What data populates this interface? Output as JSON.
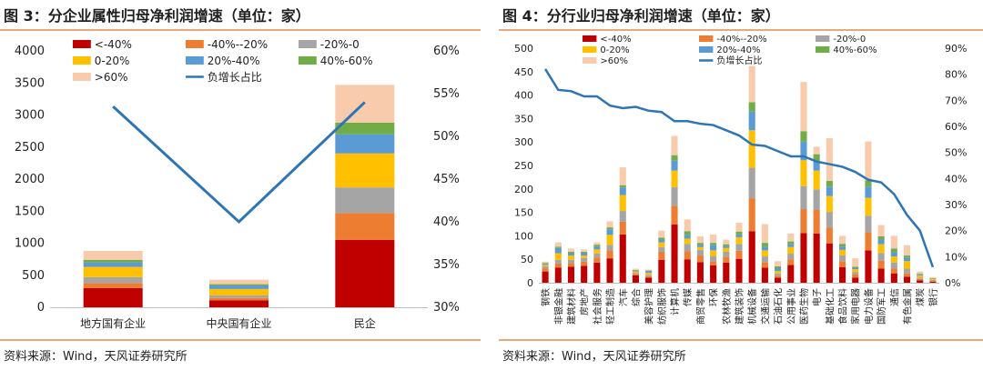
{
  "chart_data": [
    {
      "type": "bar",
      "title": "图 3：分企业属性归母净利润增速（单位：家）",
      "source": "资料来源：Wind，天风证券研究所",
      "categories": [
        "地方国有企业",
        "中央国有企业",
        "民企"
      ],
      "yticks": [
        "0",
        "500",
        "1000",
        "1500",
        "2000",
        "2500",
        "3000",
        "3500",
        "4000"
      ],
      "y2ticks": [
        "30%",
        "35%",
        "40%",
        "45%",
        "50%",
        "55%",
        "60%"
      ],
      "ylim": [
        0,
        4000
      ],
      "y2lim": [
        30,
        60
      ],
      "stacked": true,
      "series": [
        {
          "name": "<-40%",
          "color": "#c00000",
          "values": [
            300,
            110,
            1050
          ]
        },
        {
          "name": "-40%--20%",
          "color": "#ed7d31",
          "values": [
            80,
            35,
            420
          ]
        },
        {
          "name": "-20%-0",
          "color": "#a5a5a5",
          "values": [
            90,
            40,
            400
          ]
        },
        {
          "name": "0-20%",
          "color": "#ffc000",
          "values": [
            160,
            100,
            530
          ]
        },
        {
          "name": "20%-40%",
          "color": "#5b9bd5",
          "values": [
            70,
            55,
            300
          ]
        },
        {
          "name": "40%-60%",
          "color": "#70ad47",
          "values": [
            40,
            20,
            180
          ]
        },
        {
          "name": ">60%",
          "color": "#f8cbad",
          "values": [
            140,
            70,
            590
          ]
        }
      ],
      "line": {
        "name": "负增长占比",
        "color": "#2e75b6",
        "values": [
          53.5,
          40.0,
          54.0
        ]
      },
      "legend_position": "top-left"
    },
    {
      "type": "bar",
      "title": "图 4：分行业归母净利润增速（单位：家）",
      "source": "资料来源：Wind，天风证券研究所",
      "categories": [
        "钢铁",
        "非银金融",
        "建筑材料",
        "房地产",
        "社会服务",
        "轻工制造",
        "汽车",
        "综合",
        "美容护理",
        "纺织服饰",
        "计算机",
        "传媒",
        "商贸零售",
        "环保",
        "农林牧渔",
        "建筑装饰",
        "机械设备",
        "交通运输",
        "石油石化",
        "公用事业",
        "医药生物",
        "电子",
        "基础化工",
        "食品饮料",
        "家用电器",
        "电力设备",
        "国防军工",
        "通信",
        "有色金属",
        "煤炭",
        "银行"
      ],
      "yticks": [
        "0",
        "50",
        "100",
        "150",
        "200",
        "250",
        "300",
        "350",
        "400",
        "450",
        "500"
      ],
      "y2ticks": [
        "0%",
        "10%",
        "20%",
        "30%",
        "40%",
        "50%",
        "60%",
        "70%",
        "80%",
        "90%"
      ],
      "ylim": [
        0,
        500
      ],
      "y2lim": [
        0,
        90
      ],
      "stacked": true,
      "series": [
        {
          "name": "<-40%",
          "color": "#c00000",
          "values": [
            24,
            32,
            34,
            36,
            43,
            52,
            103,
            16,
            11,
            49,
            124,
            50,
            44,
            37,
            43,
            51,
            110,
            32,
            11,
            38,
            106,
            105,
            84,
            33,
            11,
            69,
            30,
            20,
            13,
            5,
            2
          ]
        },
        {
          "name": "-40%--20%",
          "color": "#ed7d31",
          "values": [
            6,
            9,
            8,
            9,
            11,
            17,
            27,
            3,
            3,
            17,
            40,
            17,
            14,
            9,
            12,
            17,
            70,
            12,
            4,
            12,
            51,
            50,
            34,
            13,
            7,
            39,
            17,
            10,
            7,
            3,
            2
          ]
        },
        {
          "name": "-20%-0",
          "color": "#a5a5a5",
          "values": [
            5,
            8,
            7,
            8,
            8,
            12,
            23,
            2,
            3,
            10,
            40,
            16,
            12,
            11,
            11,
            15,
            65,
            12,
            5,
            12,
            49,
            44,
            33,
            12,
            5,
            35,
            16,
            13,
            10,
            3,
            2
          ]
        },
        {
          "name": "0-20%",
          "color": "#ffc000",
          "values": [
            3,
            14,
            9,
            5,
            9,
            21,
            34,
            3,
            4,
            10,
            35,
            11,
            6,
            12,
            8,
            14,
            80,
            13,
            5,
            14,
            55,
            40,
            34,
            12,
            6,
            38,
            19,
            13,
            16,
            4,
            2
          ]
        },
        {
          "name": "20%-40%",
          "color": "#5b9bd5",
          "values": [
            2,
            11,
            5,
            6,
            6,
            12,
            16,
            2,
            4,
            6,
            21,
            8,
            5,
            12,
            4,
            6,
            40,
            8,
            6,
            6,
            40,
            20,
            20,
            7,
            3,
            24,
            10,
            9,
            7,
            2,
            1
          ]
        },
        {
          "name": "40%-60%",
          "color": "#70ad47",
          "values": [
            2,
            3,
            3,
            2,
            4,
            4,
            5,
            1,
            1,
            4,
            12,
            8,
            4,
            4,
            4,
            6,
            20,
            8,
            4,
            6,
            22,
            15,
            12,
            6,
            2,
            13,
            7,
            8,
            5,
            2,
            1
          ]
        },
        {
          "name": ">60%",
          "color": "#f8cbad",
          "values": [
            3,
            9,
            7,
            5,
            5,
            13,
            38,
            3,
            2,
            15,
            41,
            25,
            14,
            18,
            10,
            19,
            77,
            40,
            11,
            17,
            105,
            16,
            91,
            17,
            18,
            83,
            24,
            27,
            22,
            5,
            2
          ]
        }
      ],
      "line": {
        "name": "负增长占比",
        "color": "#2e75b6",
        "values": [
          82,
          74,
          73.5,
          71.5,
          71.5,
          68,
          67,
          67.5,
          66,
          65.5,
          62,
          62,
          61,
          60.5,
          58.5,
          56.5,
          53,
          52.5,
          50.5,
          48.5,
          48.5,
          46.5,
          45.5,
          44.5,
          42.5,
          39.5,
          38.5,
          34,
          26,
          20,
          6
        ]
      },
      "legend_position": "top-left"
    }
  ]
}
